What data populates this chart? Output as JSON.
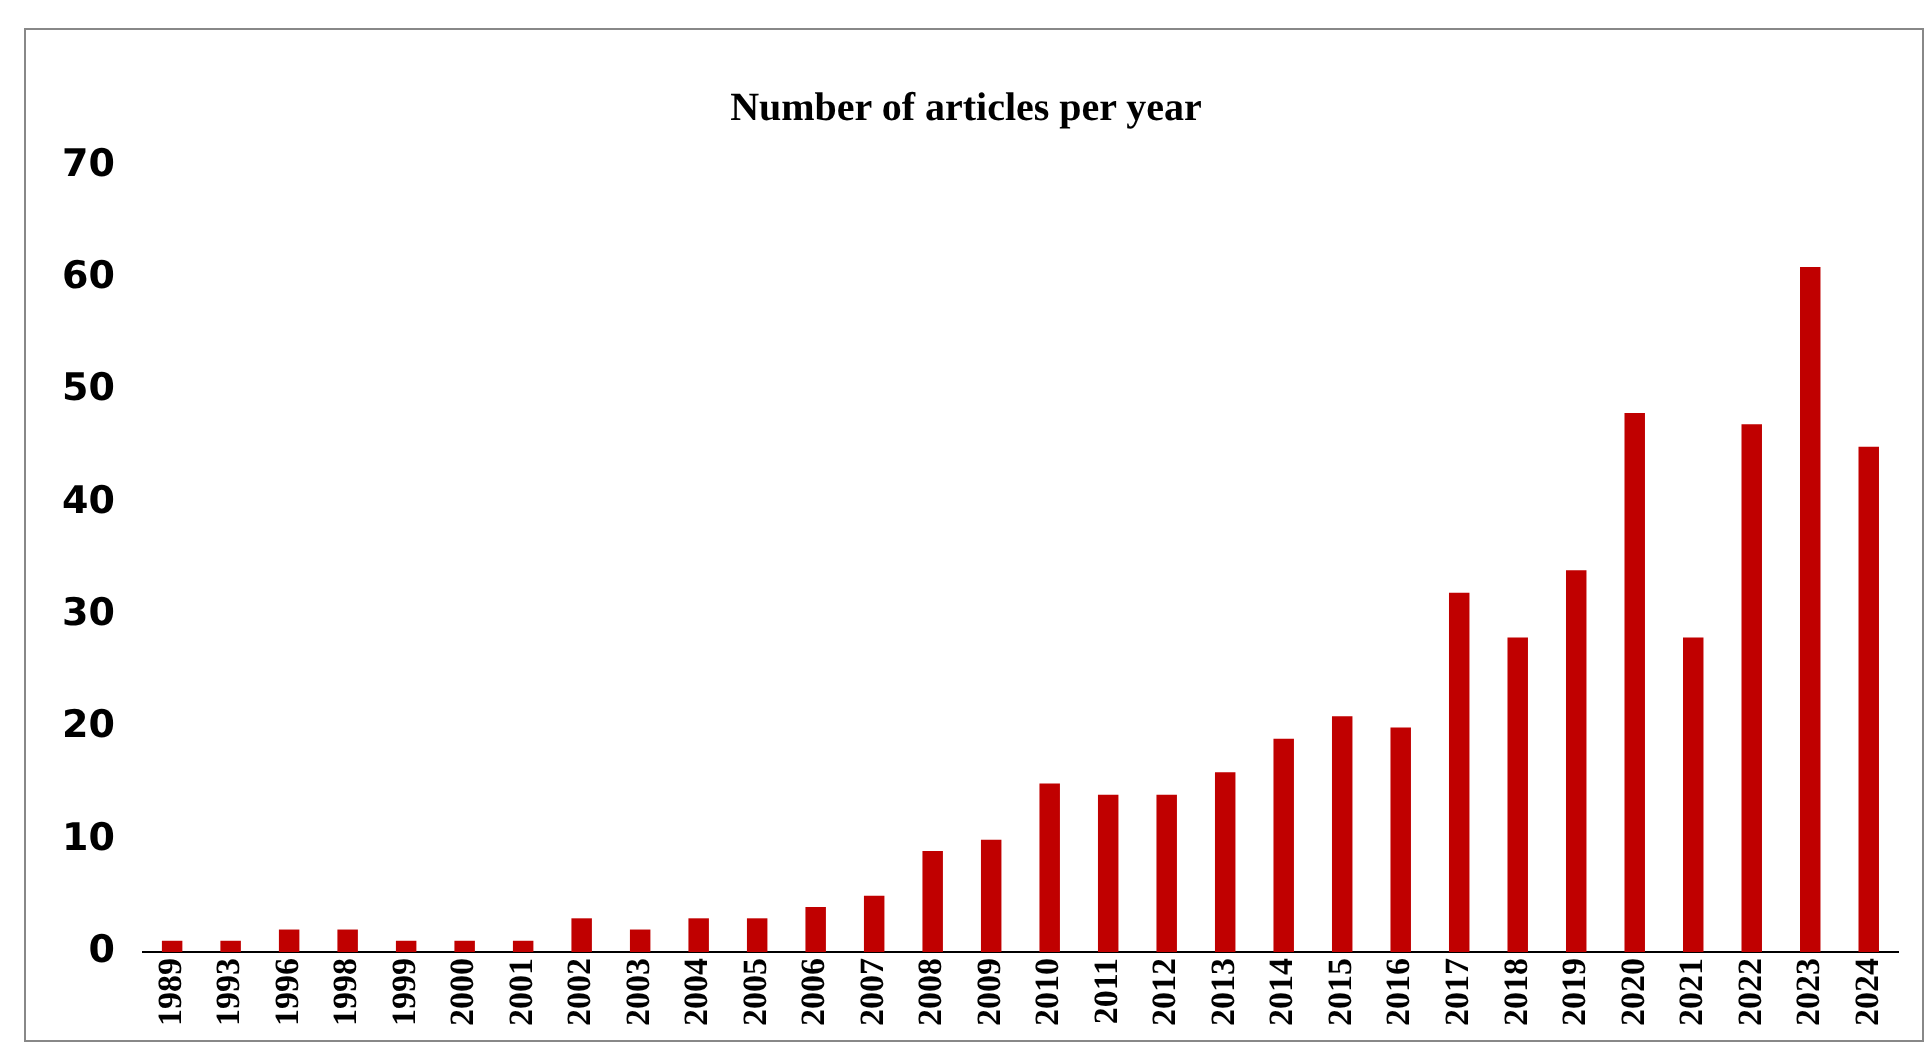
{
  "chart_data": {
    "type": "bar",
    "title": "Number of articles per year",
    "categories": [
      "1989",
      "1993",
      "1996",
      "1998",
      "1999",
      "2000",
      "2001",
      "2002",
      "2003",
      "2004",
      "2005",
      "2006",
      "2007",
      "2008",
      "2009",
      "2010",
      "2011",
      "2012",
      "2013",
      "2014",
      "2015",
      "2016",
      "2017",
      "2018",
      "2019",
      "2020",
      "2021",
      "2022",
      "2023",
      "2024"
    ],
    "values": [
      1,
      1,
      2,
      2,
      1,
      1,
      1,
      3,
      2,
      3,
      3,
      4,
      5,
      9,
      10,
      15,
      14,
      14,
      16,
      19,
      21,
      20,
      32,
      28,
      34,
      48,
      28,
      47,
      61,
      45
    ],
    "color": "#c00000",
    "ylim": [
      0,
      70
    ],
    "yticks": [
      0,
      10,
      20,
      30,
      40,
      50,
      60,
      70
    ],
    "grid": false,
    "legend": false
  }
}
